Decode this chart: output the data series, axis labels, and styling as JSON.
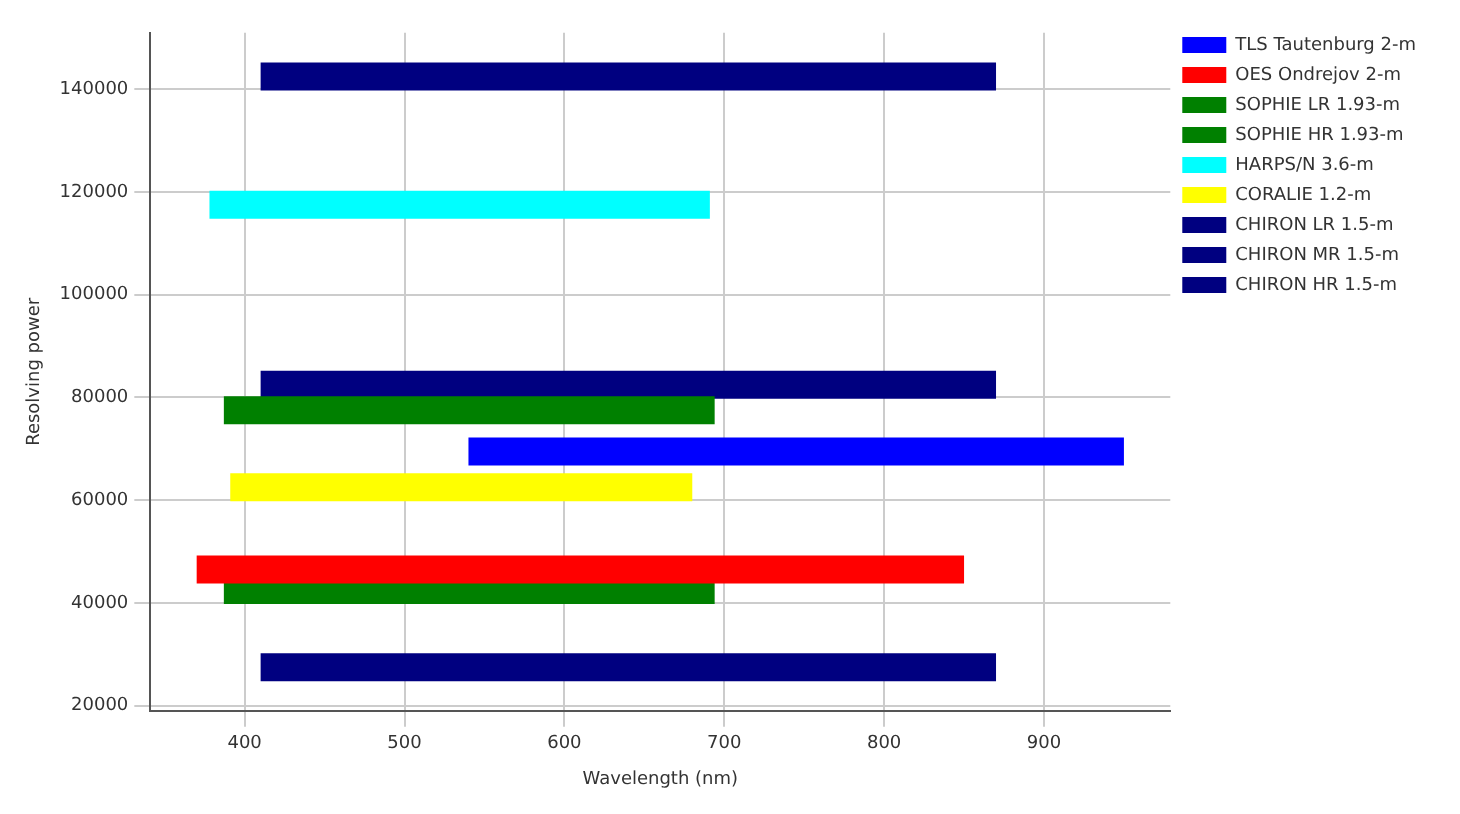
{
  "chart_data": {
    "type": "line",
    "xlabel": "Wavelength (nm)",
    "ylabel": "Resolving power",
    "series": [
      {
        "name": "TLS Tautenburg 2-m",
        "color": "#0000ff",
        "x": [
          540,
          950
        ],
        "values": [
          69500,
          69500
        ]
      },
      {
        "name": "OES Ondrejov 2-m",
        "color": "#ff0000",
        "x": [
          370,
          850
        ],
        "values": [
          46500,
          46500
        ]
      },
      {
        "name": "SOPHIE LR 1.93-m",
        "color": "#008000",
        "x": [
          387,
          694
        ],
        "values": [
          42500,
          42500
        ]
      },
      {
        "name": "SOPHIE HR 1.93-m",
        "color": "#008000",
        "x": [
          387,
          694
        ],
        "values": [
          77500,
          77500
        ]
      },
      {
        "name": "HARPS/N 3.6-m",
        "color": "#00ffff",
        "x": [
          378,
          691
        ],
        "values": [
          117500,
          117500
        ]
      },
      {
        "name": "CORALIE 1.2-m",
        "color": "#ffff00",
        "x": [
          391,
          680
        ],
        "values": [
          62500,
          62500
        ]
      },
      {
        "name": "CHIRON LR 1.5-m",
        "color": "#000080",
        "x": [
          410,
          870
        ],
        "values": [
          27500,
          27500
        ]
      },
      {
        "name": "CHIRON MR 1.5-m",
        "color": "#000080",
        "x": [
          410,
          870
        ],
        "values": [
          82500,
          82500
        ]
      },
      {
        "name": "CHIRON HR 1.5-m",
        "color": "#000080",
        "x": [
          410,
          870
        ],
        "values": [
          142500,
          142500
        ]
      }
    ],
    "xlim": [
      341,
      979
    ],
    "xticks": [
      400,
      500,
      600,
      700,
      800,
      900
    ],
    "ylim": [
      19000,
      151000
    ],
    "yticks": [
      20000,
      40000,
      60000,
      80000,
      100000,
      120000,
      140000
    ],
    "grid": true,
    "legend": "top right"
  }
}
